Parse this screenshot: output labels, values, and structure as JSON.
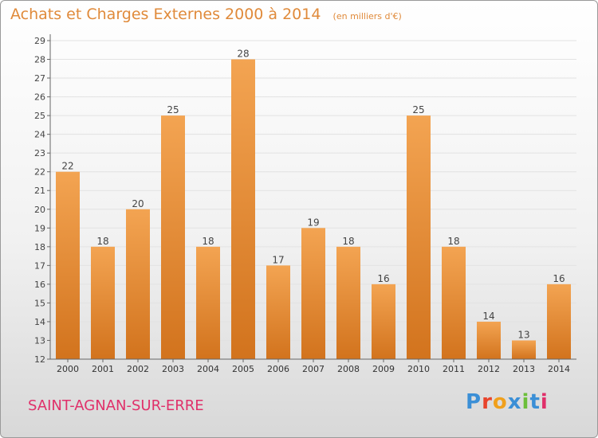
{
  "title": "Achats et Charges Externes 2000 à 2014",
  "unit": "(en milliers d'€)",
  "commune": "SAINT-AGNAN-SUR-ERRE",
  "brand": {
    "name": "Proxiti",
    "colors": [
      "#3b8fd6",
      "#e8442c",
      "#f0a01c",
      "#3b8fd6",
      "#6cbf3a",
      "#3b8fd6",
      "#e0306a"
    ]
  },
  "colors": {
    "bar_top": "#f3a452",
    "bar_bottom": "#d2731d",
    "text": "#e08a3a",
    "commune": "#e0306a"
  },
  "chart_data": {
    "type": "bar",
    "categories": [
      "2000",
      "2001",
      "2002",
      "2003",
      "2004",
      "2005",
      "2006",
      "2007",
      "2008",
      "2009",
      "2010",
      "2011",
      "2012",
      "2013",
      "2014"
    ],
    "values": [
      22,
      18,
      20,
      25,
      18,
      28,
      17,
      19,
      18,
      16,
      25,
      18,
      14,
      13,
      16
    ],
    "ylim": [
      12,
      29
    ],
    "yticks": [
      12,
      13,
      14,
      15,
      16,
      17,
      18,
      19,
      20,
      21,
      22,
      23,
      24,
      25,
      26,
      27,
      28,
      29
    ],
    "grid": "horizontal",
    "title": "Achats et Charges Externes 2000 à 2014",
    "xlabel": "",
    "ylabel": ""
  }
}
